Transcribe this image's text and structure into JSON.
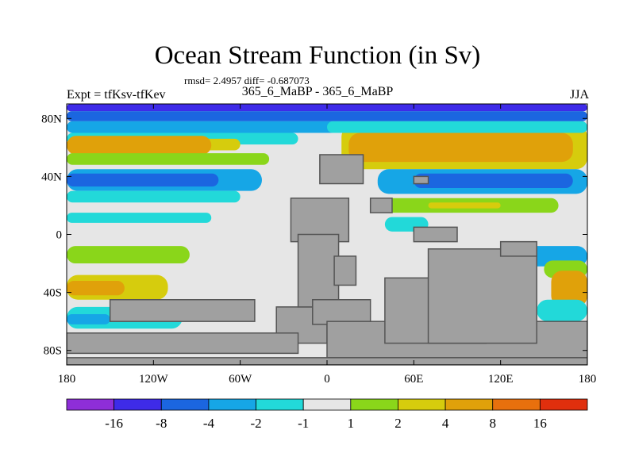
{
  "chart_data": {
    "type": "heatmap",
    "title": "Ocean Stream Function (in Sv)",
    "stats": "rmsd= 2.4957 diff= -0.687073",
    "left_label": "Expt = tfKsv-tfKev",
    "center_label": "365_6_MaBP - 365_6_MaBP",
    "right_label": "JJA",
    "x_ticks": [
      "180",
      "120W",
      "60W",
      "0",
      "60E",
      "120E",
      "180"
    ],
    "x_tick_lon": [
      -180,
      -120,
      -60,
      0,
      60,
      120,
      180
    ],
    "y_ticks": [
      "80N",
      "40N",
      "0",
      "40S",
      "80S"
    ],
    "y_tick_lat": [
      80,
      40,
      0,
      -40,
      -80
    ],
    "xlim": [
      -180,
      180
    ],
    "ylim": [
      -90,
      90
    ],
    "colorbar": {
      "labels": [
        "-16",
        "-8",
        "-4",
        "-2",
        "-1",
        "1",
        "2",
        "4",
        "8",
        "16"
      ],
      "colors": [
        "#8e2ed8",
        "#3e2be8",
        "#1b66e0",
        "#16a6e6",
        "#22d9d9",
        "#e6e6e6",
        "#8ad61a",
        "#d6cc0d",
        "#e0a10a",
        "#e8700d",
        "#e02f0d"
      ]
    },
    "land_color": "#a0a0a0",
    "bands": [
      {
        "lat": [
          85,
          90
        ],
        "lon": [
          -180,
          180
        ],
        "color": "#3e2be8"
      },
      {
        "lat": [
          78,
          85
        ],
        "lon": [
          -180,
          180
        ],
        "color": "#1b66e0"
      },
      {
        "lat": [
          70,
          78
        ],
        "lon": [
          -180,
          180
        ],
        "color": "#16a6e6"
      },
      {
        "lat": [
          62,
          70
        ],
        "lon": [
          -180,
          -20
        ],
        "color": "#22d9d9"
      },
      {
        "lat": [
          58,
          66
        ],
        "lon": [
          -180,
          -60
        ],
        "color": "#d6cc0d"
      },
      {
        "lat": [
          55,
          68
        ],
        "lon": [
          -180,
          -80
        ],
        "color": "#e0a10a"
      },
      {
        "lat": [
          48,
          56
        ],
        "lon": [
          -180,
          -40
        ],
        "color": "#8ad61a"
      },
      {
        "lat": [
          30,
          45
        ],
        "lon": [
          -180,
          -45
        ],
        "color": "#16a6e6"
      },
      {
        "lat": [
          33,
          42
        ],
        "lon": [
          -180,
          -75
        ],
        "color": "#1b66e0"
      },
      {
        "lat": [
          22,
          30
        ],
        "lon": [
          -180,
          -60
        ],
        "color": "#22d9d9"
      },
      {
        "lat": [
          8,
          15
        ],
        "lon": [
          -180,
          -80
        ],
        "color": "#22d9d9"
      },
      {
        "lat": [
          -20,
          -8
        ],
        "lon": [
          -180,
          -95
        ],
        "color": "#8ad61a"
      },
      {
        "lat": [
          -45,
          -28
        ],
        "lon": [
          -180,
          -110
        ],
        "color": "#d6cc0d"
      },
      {
        "lat": [
          -42,
          -32
        ],
        "lon": [
          -180,
          -140
        ],
        "color": "#e0a10a"
      },
      {
        "lat": [
          -65,
          -50
        ],
        "lon": [
          -180,
          -100
        ],
        "color": "#22d9d9"
      },
      {
        "lat": [
          -62,
          -55
        ],
        "lon": [
          -180,
          -150
        ],
        "color": "#16a6e6"
      },
      {
        "lat": [
          45,
          75
        ],
        "lon": [
          10,
          180
        ],
        "color": "#d6cc0d"
      },
      {
        "lat": [
          50,
          70
        ],
        "lon": [
          15,
          170
        ],
        "color": "#e0a10a"
      },
      {
        "lat": [
          70,
          78
        ],
        "lon": [
          0,
          180
        ],
        "color": "#22d9d9"
      },
      {
        "lat": [
          28,
          45
        ],
        "lon": [
          35,
          180
        ],
        "color": "#16a6e6"
      },
      {
        "lat": [
          32,
          42
        ],
        "lon": [
          60,
          170
        ],
        "color": "#1b66e0"
      },
      {
        "lat": [
          15,
          25
        ],
        "lon": [
          40,
          160
        ],
        "color": "#8ad61a"
      },
      {
        "lat": [
          18,
          22
        ],
        "lon": [
          70,
          120
        ],
        "color": "#d6cc0d"
      },
      {
        "lat": [
          2,
          12
        ],
        "lon": [
          40,
          70
        ],
        "color": "#22d9d9"
      },
      {
        "lat": [
          -22,
          -8
        ],
        "lon": [
          135,
          180
        ],
        "color": "#16a6e6"
      },
      {
        "lat": [
          -30,
          -18
        ],
        "lon": [
          150,
          180
        ],
        "color": "#8ad61a"
      },
      {
        "lat": [
          -50,
          -25
        ],
        "lon": [
          155,
          180
        ],
        "color": "#e0a10a"
      },
      {
        "lat": [
          -60,
          -45
        ],
        "lon": [
          145,
          180
        ],
        "color": "#22d9d9"
      }
    ],
    "land": [
      {
        "lon": [
          -35,
          0
        ],
        "lat": [
          -75,
          -50
        ]
      },
      {
        "lon": [
          -25,
          15
        ],
        "lat": [
          -5,
          25
        ]
      },
      {
        "lon": [
          -20,
          8
        ],
        "lat": [
          -50,
          0
        ]
      },
      {
        "lon": [
          5,
          20
        ],
        "lat": [
          -35,
          -15
        ]
      },
      {
        "lon": [
          -10,
          30
        ],
        "lat": [
          -62,
          -45
        ]
      },
      {
        "lon": [
          0,
          180
        ],
        "lat": [
          -85,
          -60
        ]
      },
      {
        "lon": [
          40,
          110
        ],
        "lat": [
          -75,
          -30
        ]
      },
      {
        "lon": [
          70,
          145
        ],
        "lat": [
          -75,
          -10
        ]
      },
      {
        "lon": [
          120,
          145
        ],
        "lat": [
          -15,
          -5
        ]
      },
      {
        "lon": [
          -5,
          25
        ],
        "lat": [
          35,
          55
        ]
      },
      {
        "lon": [
          30,
          45
        ],
        "lat": [
          15,
          25
        ]
      },
      {
        "lon": [
          60,
          90
        ],
        "lat": [
          -5,
          5
        ]
      },
      {
        "lon": [
          60,
          70
        ],
        "lat": [
          35,
          40
        ]
      },
      {
        "lon": [
          -150,
          -50
        ],
        "lat": [
          -60,
          -45
        ]
      },
      {
        "lon": [
          -180,
          -20
        ],
        "lat": [
          -82,
          -68
        ]
      },
      {
        "lon": [
          -180,
          180
        ],
        "lat": [
          -90,
          -85
        ]
      }
    ]
  }
}
